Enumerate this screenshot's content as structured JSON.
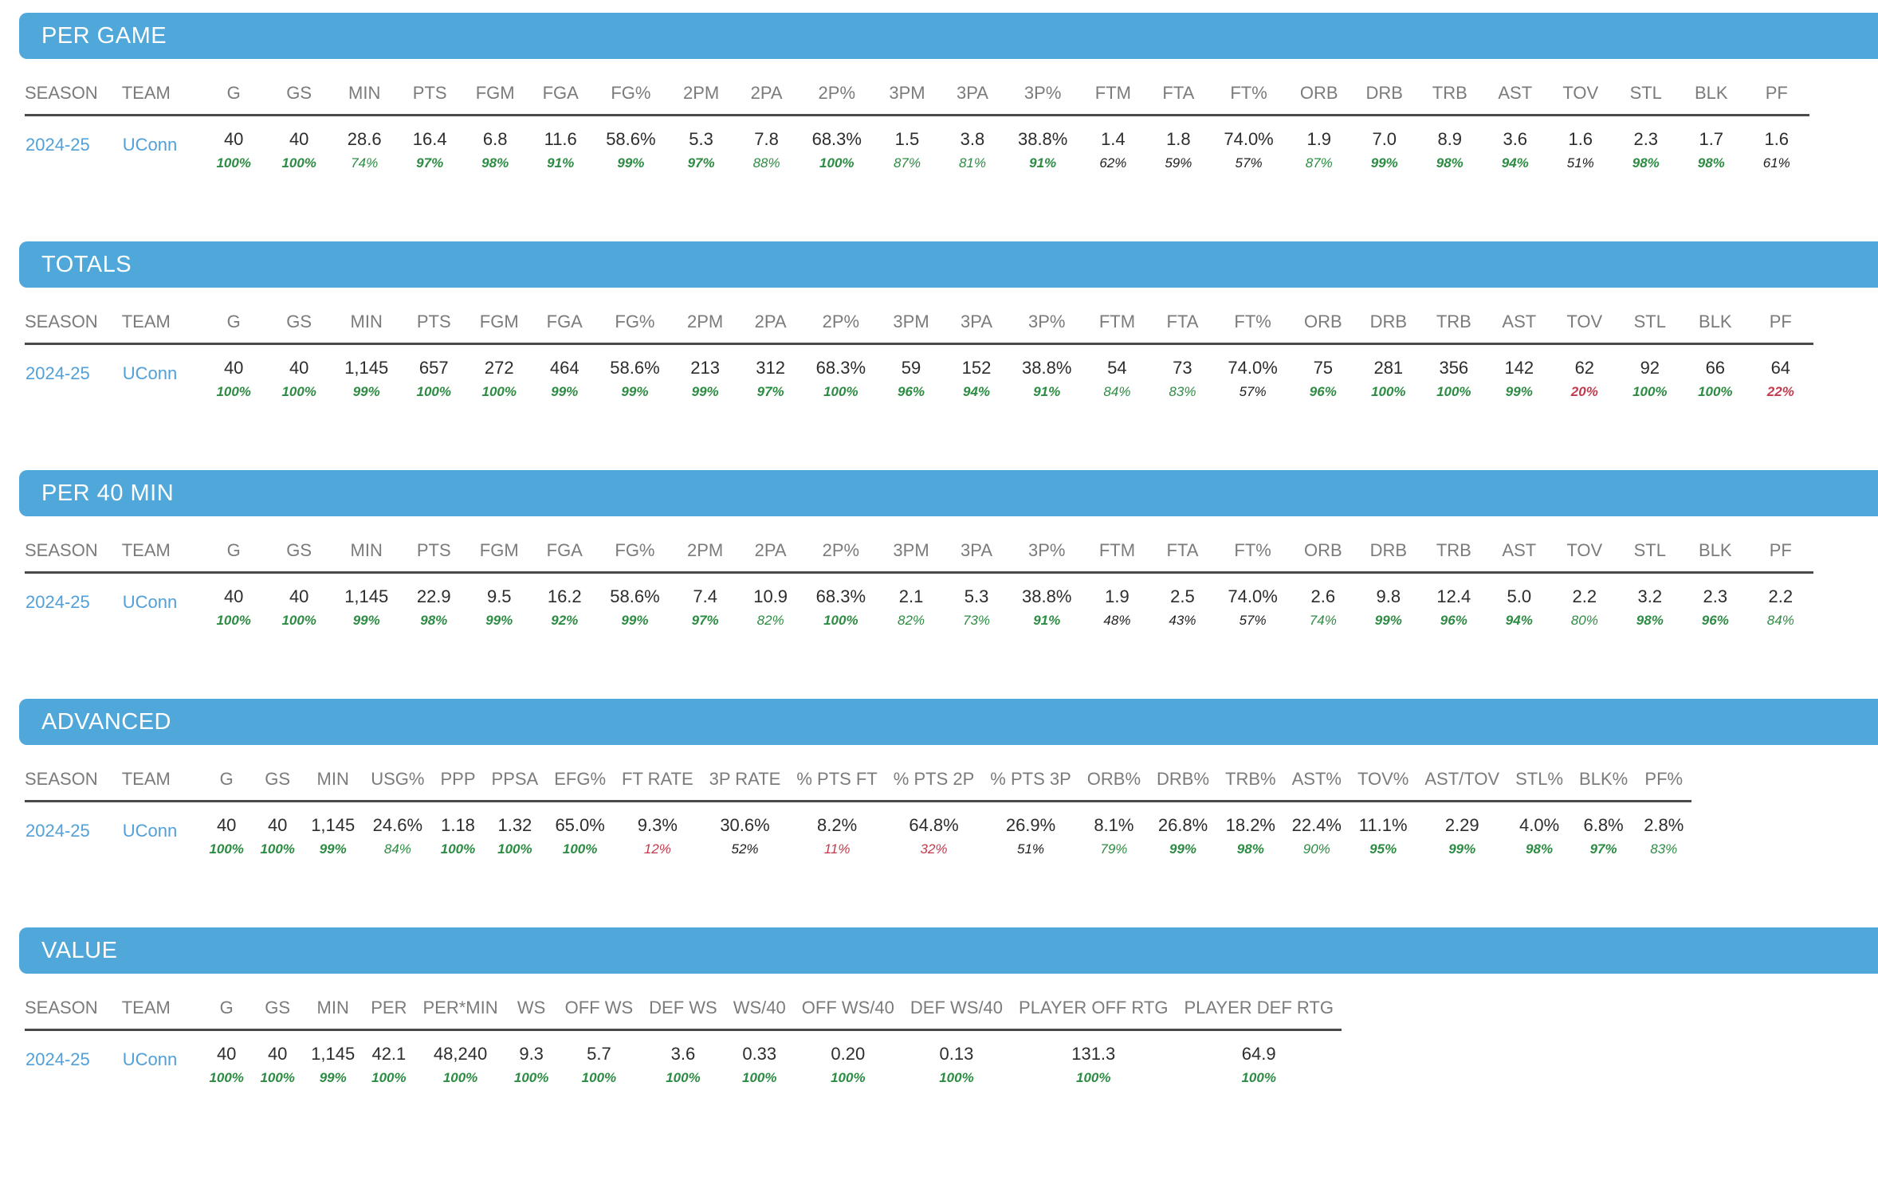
{
  "colors": {
    "section_bar_blue": "#4FA7DA",
    "section_title_white": "#ffffff",
    "column_header_gray": "#7B7B7B",
    "divider_gray": "#4A4A4A",
    "value_dark": "#2D2D2D",
    "link_blue": "#52A0D8",
    "percentile_green": "#2D8C43",
    "percentile_neutral": "#1F1F1F",
    "percentile_red": "#C43A4C"
  },
  "tables": [
    {
      "title": "PER GAME",
      "columns": [
        "SEASON",
        "TEAM",
        "G",
        "GS",
        "MIN",
        "PTS",
        "FGM",
        "FGA",
        "FG%",
        "2PM",
        "2PA",
        "2P%",
        "3PM",
        "3PA",
        "3P%",
        "FTM",
        "FTA",
        "FT%",
        "ORB",
        "DRB",
        "TRB",
        "AST",
        "TOV",
        "STL",
        "BLK",
        "PF"
      ],
      "row": {
        "season": "2024-25",
        "team": "UConn",
        "stats": [
          {
            "value": "40",
            "pct": "100%",
            "tone": "green-bold"
          },
          {
            "value": "40",
            "pct": "100%",
            "tone": "green-bold"
          },
          {
            "value": "28.6",
            "pct": "74%",
            "tone": "green"
          },
          {
            "value": "16.4",
            "pct": "97%",
            "tone": "green-bold"
          },
          {
            "value": "6.8",
            "pct": "98%",
            "tone": "green-bold"
          },
          {
            "value": "11.6",
            "pct": "91%",
            "tone": "green-bold"
          },
          {
            "value": "58.6%",
            "pct": "99%",
            "tone": "green-bold"
          },
          {
            "value": "5.3",
            "pct": "97%",
            "tone": "green-bold"
          },
          {
            "value": "7.8",
            "pct": "88%",
            "tone": "green"
          },
          {
            "value": "68.3%",
            "pct": "100%",
            "tone": "green-bold"
          },
          {
            "value": "1.5",
            "pct": "87%",
            "tone": "green"
          },
          {
            "value": "3.8",
            "pct": "81%",
            "tone": "green"
          },
          {
            "value": "38.8%",
            "pct": "91%",
            "tone": "green-bold"
          },
          {
            "value": "1.4",
            "pct": "62%",
            "tone": "neutral"
          },
          {
            "value": "1.8",
            "pct": "59%",
            "tone": "neutral"
          },
          {
            "value": "74.0%",
            "pct": "57%",
            "tone": "neutral"
          },
          {
            "value": "1.9",
            "pct": "87%",
            "tone": "green"
          },
          {
            "value": "7.0",
            "pct": "99%",
            "tone": "green-bold"
          },
          {
            "value": "8.9",
            "pct": "98%",
            "tone": "green-bold"
          },
          {
            "value": "3.6",
            "pct": "94%",
            "tone": "green-bold"
          },
          {
            "value": "1.6",
            "pct": "51%",
            "tone": "neutral"
          },
          {
            "value": "2.3",
            "pct": "98%",
            "tone": "green-bold"
          },
          {
            "value": "1.7",
            "pct": "98%",
            "tone": "green-bold"
          },
          {
            "value": "1.6",
            "pct": "61%",
            "tone": "neutral"
          }
        ]
      }
    },
    {
      "title": "TOTALS",
      "columns": [
        "SEASON",
        "TEAM",
        "G",
        "GS",
        "MIN",
        "PTS",
        "FGM",
        "FGA",
        "FG%",
        "2PM",
        "2PA",
        "2P%",
        "3PM",
        "3PA",
        "3P%",
        "FTM",
        "FTA",
        "FT%",
        "ORB",
        "DRB",
        "TRB",
        "AST",
        "TOV",
        "STL",
        "BLK",
        "PF"
      ],
      "row": {
        "season": "2024-25",
        "team": "UConn",
        "stats": [
          {
            "value": "40",
            "pct": "100%",
            "tone": "green-bold"
          },
          {
            "value": "40",
            "pct": "100%",
            "tone": "green-bold"
          },
          {
            "value": "1,145",
            "pct": "99%",
            "tone": "green-bold"
          },
          {
            "value": "657",
            "pct": "100%",
            "tone": "green-bold"
          },
          {
            "value": "272",
            "pct": "100%",
            "tone": "green-bold"
          },
          {
            "value": "464",
            "pct": "99%",
            "tone": "green-bold"
          },
          {
            "value": "58.6%",
            "pct": "99%",
            "tone": "green-bold"
          },
          {
            "value": "213",
            "pct": "99%",
            "tone": "green-bold"
          },
          {
            "value": "312",
            "pct": "97%",
            "tone": "green-bold"
          },
          {
            "value": "68.3%",
            "pct": "100%",
            "tone": "green-bold"
          },
          {
            "value": "59",
            "pct": "96%",
            "tone": "green-bold"
          },
          {
            "value": "152",
            "pct": "94%",
            "tone": "green-bold"
          },
          {
            "value": "38.8%",
            "pct": "91%",
            "tone": "green-bold"
          },
          {
            "value": "54",
            "pct": "84%",
            "tone": "green"
          },
          {
            "value": "73",
            "pct": "83%",
            "tone": "green"
          },
          {
            "value": "74.0%",
            "pct": "57%",
            "tone": "neutral"
          },
          {
            "value": "75",
            "pct": "96%",
            "tone": "green-bold"
          },
          {
            "value": "281",
            "pct": "100%",
            "tone": "green-bold"
          },
          {
            "value": "356",
            "pct": "100%",
            "tone": "green-bold"
          },
          {
            "value": "142",
            "pct": "99%",
            "tone": "green-bold"
          },
          {
            "value": "62",
            "pct": "20%",
            "tone": "red-bold"
          },
          {
            "value": "92",
            "pct": "100%",
            "tone": "green-bold"
          },
          {
            "value": "66",
            "pct": "100%",
            "tone": "green-bold"
          },
          {
            "value": "64",
            "pct": "22%",
            "tone": "red-bold"
          }
        ]
      }
    },
    {
      "title": "PER 40 MIN",
      "columns": [
        "SEASON",
        "TEAM",
        "G",
        "GS",
        "MIN",
        "PTS",
        "FGM",
        "FGA",
        "FG%",
        "2PM",
        "2PA",
        "2P%",
        "3PM",
        "3PA",
        "3P%",
        "FTM",
        "FTA",
        "FT%",
        "ORB",
        "DRB",
        "TRB",
        "AST",
        "TOV",
        "STL",
        "BLK",
        "PF"
      ],
      "row": {
        "season": "2024-25",
        "team": "UConn",
        "stats": [
          {
            "value": "40",
            "pct": "100%",
            "tone": "green-bold"
          },
          {
            "value": "40",
            "pct": "100%",
            "tone": "green-bold"
          },
          {
            "value": "1,145",
            "pct": "99%",
            "tone": "green-bold"
          },
          {
            "value": "22.9",
            "pct": "98%",
            "tone": "green-bold"
          },
          {
            "value": "9.5",
            "pct": "99%",
            "tone": "green-bold"
          },
          {
            "value": "16.2",
            "pct": "92%",
            "tone": "green-bold"
          },
          {
            "value": "58.6%",
            "pct": "99%",
            "tone": "green-bold"
          },
          {
            "value": "7.4",
            "pct": "97%",
            "tone": "green-bold"
          },
          {
            "value": "10.9",
            "pct": "82%",
            "tone": "green"
          },
          {
            "value": "68.3%",
            "pct": "100%",
            "tone": "green-bold"
          },
          {
            "value": "2.1",
            "pct": "82%",
            "tone": "green"
          },
          {
            "value": "5.3",
            "pct": "73%",
            "tone": "green"
          },
          {
            "value": "38.8%",
            "pct": "91%",
            "tone": "green-bold"
          },
          {
            "value": "1.9",
            "pct": "48%",
            "tone": "neutral"
          },
          {
            "value": "2.5",
            "pct": "43%",
            "tone": "neutral"
          },
          {
            "value": "74.0%",
            "pct": "57%",
            "tone": "neutral"
          },
          {
            "value": "2.6",
            "pct": "74%",
            "tone": "green"
          },
          {
            "value": "9.8",
            "pct": "99%",
            "tone": "green-bold"
          },
          {
            "value": "12.4",
            "pct": "96%",
            "tone": "green-bold"
          },
          {
            "value": "5.0",
            "pct": "94%",
            "tone": "green-bold"
          },
          {
            "value": "2.2",
            "pct": "80%",
            "tone": "green"
          },
          {
            "value": "3.2",
            "pct": "98%",
            "tone": "green-bold"
          },
          {
            "value": "2.3",
            "pct": "96%",
            "tone": "green-bold"
          },
          {
            "value": "2.2",
            "pct": "84%",
            "tone": "green"
          }
        ]
      }
    },
    {
      "title": "ADVANCED",
      "columns": [
        "SEASON",
        "TEAM",
        "G",
        "GS",
        "MIN",
        "USG%",
        "PPP",
        "PPSA",
        "EFG%",
        "FT RATE",
        "3P RATE",
        "% PTS FT",
        "% PTS 2P",
        "% PTS 3P",
        "ORB%",
        "DRB%",
        "TRB%",
        "AST%",
        "TOV%",
        "AST/TOV",
        "STL%",
        "BLK%",
        "PF%"
      ],
      "row": {
        "season": "2024-25",
        "team": "UConn",
        "stats": [
          {
            "value": "40",
            "pct": "100%",
            "tone": "green-bold"
          },
          {
            "value": "40",
            "pct": "100%",
            "tone": "green-bold"
          },
          {
            "value": "1,145",
            "pct": "99%",
            "tone": "green-bold"
          },
          {
            "value": "24.6%",
            "pct": "84%",
            "tone": "green"
          },
          {
            "value": "1.18",
            "pct": "100%",
            "tone": "green-bold"
          },
          {
            "value": "1.32",
            "pct": "100%",
            "tone": "green-bold"
          },
          {
            "value": "65.0%",
            "pct": "100%",
            "tone": "green-bold"
          },
          {
            "value": "9.3%",
            "pct": "12%",
            "tone": "red"
          },
          {
            "value": "30.6%",
            "pct": "52%",
            "tone": "neutral"
          },
          {
            "value": "8.2%",
            "pct": "11%",
            "tone": "red"
          },
          {
            "value": "64.8%",
            "pct": "32%",
            "tone": "red"
          },
          {
            "value": "26.9%",
            "pct": "51%",
            "tone": "neutral"
          },
          {
            "value": "8.1%",
            "pct": "79%",
            "tone": "green"
          },
          {
            "value": "26.8%",
            "pct": "99%",
            "tone": "green-bold"
          },
          {
            "value": "18.2%",
            "pct": "98%",
            "tone": "green-bold"
          },
          {
            "value": "22.4%",
            "pct": "90%",
            "tone": "green"
          },
          {
            "value": "11.1%",
            "pct": "95%",
            "tone": "green-bold"
          },
          {
            "value": "2.29",
            "pct": "99%",
            "tone": "green-bold"
          },
          {
            "value": "4.0%",
            "pct": "98%",
            "tone": "green-bold"
          },
          {
            "value": "6.8%",
            "pct": "97%",
            "tone": "green-bold"
          },
          {
            "value": "2.8%",
            "pct": "83%",
            "tone": "green"
          }
        ]
      }
    },
    {
      "title": "VALUE",
      "columns": [
        "SEASON",
        "TEAM",
        "G",
        "GS",
        "MIN",
        "PER",
        "PER*MIN",
        "WS",
        "OFF WS",
        "DEF WS",
        "WS/40",
        "OFF WS/40",
        "DEF WS/40",
        "PLAYER OFF RTG",
        "PLAYER DEF RTG"
      ],
      "row": {
        "season": "2024-25",
        "team": "UConn",
        "stats": [
          {
            "value": "40",
            "pct": "100%",
            "tone": "green-bold"
          },
          {
            "value": "40",
            "pct": "100%",
            "tone": "green-bold"
          },
          {
            "value": "1,145",
            "pct": "99%",
            "tone": "green-bold"
          },
          {
            "value": "42.1",
            "pct": "100%",
            "tone": "green-bold"
          },
          {
            "value": "48,240",
            "pct": "100%",
            "tone": "green-bold"
          },
          {
            "value": "9.3",
            "pct": "100%",
            "tone": "green-bold"
          },
          {
            "value": "5.7",
            "pct": "100%",
            "tone": "green-bold"
          },
          {
            "value": "3.6",
            "pct": "100%",
            "tone": "green-bold"
          },
          {
            "value": "0.33",
            "pct": "100%",
            "tone": "green-bold"
          },
          {
            "value": "0.20",
            "pct": "100%",
            "tone": "green-bold"
          },
          {
            "value": "0.13",
            "pct": "100%",
            "tone": "green-bold"
          },
          {
            "value": "131.3",
            "pct": "100%",
            "tone": "green-bold"
          },
          {
            "value": "64.9",
            "pct": "100%",
            "tone": "green-bold"
          }
        ]
      }
    }
  ]
}
